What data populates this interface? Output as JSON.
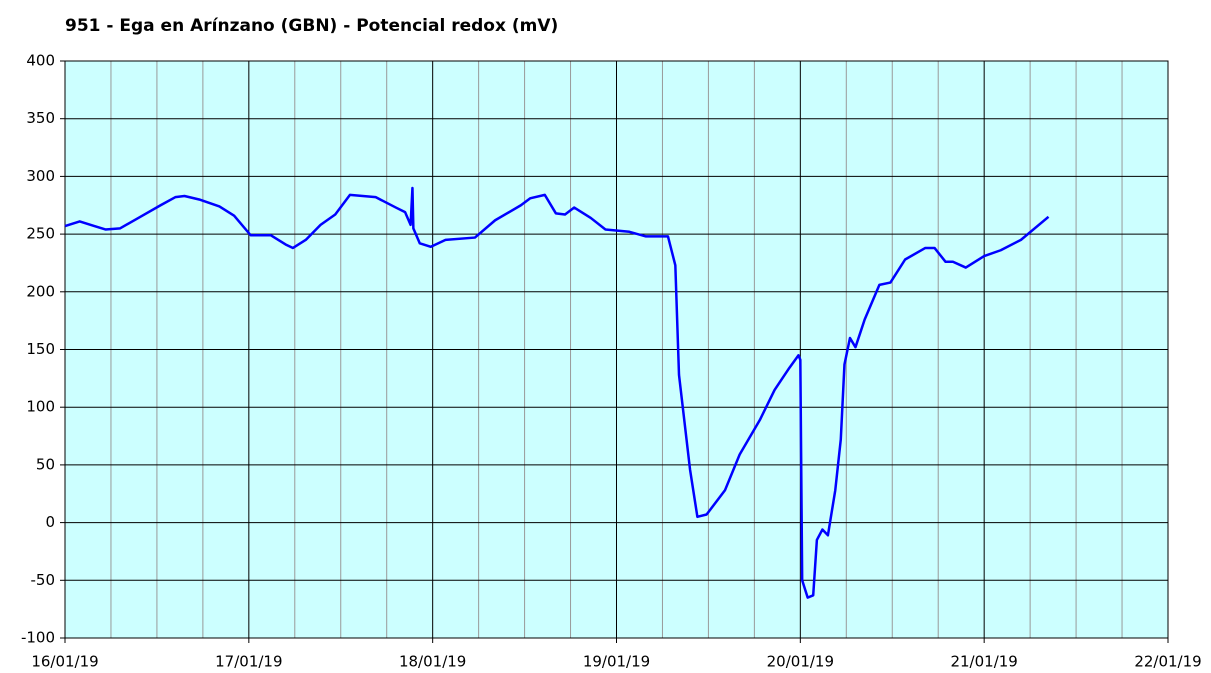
{
  "chart_data": {
    "type": "line",
    "title": "951 - Ega en Arínzano (GBN) - Potencial redox (mV)",
    "x": [
      0,
      0.08,
      0.16,
      0.22,
      0.3,
      0.41,
      0.52,
      0.6,
      0.65,
      0.73,
      0.84,
      0.92,
      1.01,
      1.12,
      1.2,
      1.24,
      1.31,
      1.39,
      1.47,
      1.55,
      1.69,
      1.8,
      1.85,
      1.88,
      1.89,
      1.895,
      1.93,
      1.99,
      2.07,
      2.23,
      2.34,
      2.48,
      2.53,
      2.61,
      2.67,
      2.72,
      2.77,
      2.86,
      2.94,
      3.07,
      3.16,
      3.28,
      3.32,
      3.34,
      3.4,
      3.44,
      3.49,
      3.59,
      3.67,
      3.78,
      3.86,
      3.94,
      3.99,
      4.0,
      4.01,
      4.04,
      4.07,
      4.09,
      4.12,
      4.15,
      4.19,
      4.22,
      4.24,
      4.27,
      4.3,
      4.35,
      4.43,
      4.49,
      4.57,
      4.68,
      4.73,
      4.79,
      4.83,
      4.9,
      5.0,
      5.09,
      5.2,
      5.35
    ],
    "series": [
      {
        "name": "Potencial redox",
        "color": "#0000ff",
        "values": [
          257,
          261,
          257,
          254,
          255,
          265,
          275,
          282,
          283,
          280,
          274,
          266,
          249,
          249,
          241,
          238,
          245,
          258,
          267,
          284,
          282,
          273,
          269,
          258,
          290,
          255,
          242,
          239,
          245,
          247,
          262,
          275,
          281,
          284,
          268,
          267,
          273,
          264,
          254,
          252,
          248,
          248,
          223,
          128,
          46,
          5,
          7,
          28,
          59,
          89,
          115,
          134,
          145,
          141,
          -50,
          -65,
          -63,
          -15,
          -6,
          -11,
          28,
          72,
          137,
          160,
          152,
          176,
          206,
          208,
          228,
          238,
          238,
          226,
          226,
          221,
          231,
          236,
          245,
          265
        ]
      }
    ],
    "xlim": [
      0,
      6
    ],
    "xticks": [
      {
        "value": 0,
        "label": "16/01/19"
      },
      {
        "value": 1,
        "label": "17/01/19"
      },
      {
        "value": 2,
        "label": "18/01/19"
      },
      {
        "value": 3,
        "label": "19/01/19"
      },
      {
        "value": 4,
        "label": "20/01/19"
      },
      {
        "value": 5,
        "label": "21/01/19"
      },
      {
        "value": 6,
        "label": "22/01/19"
      }
    ],
    "xminorticks": [
      0.25,
      0.5,
      0.75,
      1.25,
      1.5,
      1.75,
      2.25,
      2.5,
      2.75,
      3.25,
      3.5,
      3.75,
      4.25,
      4.5,
      4.75,
      5.25,
      5.5,
      5.75
    ],
    "ylim": [
      -100,
      400
    ],
    "yticks": [
      -100,
      -50,
      0,
      50,
      100,
      150,
      200,
      250,
      300,
      350,
      400
    ],
    "grid": true,
    "plot_background": "#ccffff"
  }
}
